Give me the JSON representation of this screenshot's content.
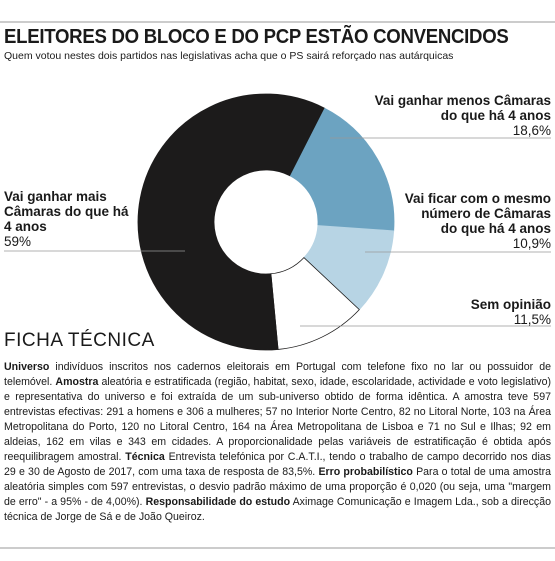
{
  "chart_data": {
    "type": "donut",
    "title": "ELEITORES DO BLOCO E DO PCP ESTÃO CONVENCIDOS",
    "subtitle": "Quem votou nestes dois partidos nas legislativas acha que o PS sairá reforçado nas autárquicas",
    "categories": [
      "Vai ganhar menos Câmaras do que há 4 anos",
      "Vai ficar com o mesmo número de Câmaras do que há 4 anos",
      "Sem opinião",
      "Vai ganhar mais Câmaras do que há 4 anos"
    ],
    "values": [
      18.6,
      10.9,
      11.5,
      59
    ],
    "value_labels": [
      "18,6%",
      "10,9%",
      "11,5%",
      "59%"
    ],
    "colors": [
      "#6ca3c1",
      "#b7d4e4",
      "#ffffff",
      "#1c1b1b"
    ]
  },
  "ficha_tecnica": {
    "heading": "FICHA TÉCNICA",
    "items": [
      {
        "term": "Universo",
        "text": "indivíduos inscritos nos cadernos eleitorais em Portugal com telefone fixo no lar ou possuidor de telemóvel."
      },
      {
        "term": "Amostra",
        "text": "aleatória e estratificada (região, habitat, sexo, idade, escolaridade, actividade e voto legislativo) e representativa do universo e foi extraída de um sub-universo obtido de forma idêntica. A amostra teve 597 entrevistas efectivas: 291 a homens e 306 a mulheres; 57 no Interior Norte Centro, 82 no Litoral Norte, 103 na Área Metropolitana do Porto, 120 no Litoral Centro, 164 na Área Metropolitana de Lisboa e 71 no Sul e Ilhas; 92 em aldeias, 162 em vilas e 343 em cidades. A proporcionalidade pelas variáveis de estratificação é obtida após reequilibragem amostral."
      },
      {
        "term": "Técnica",
        "text": "Entrevista telefónica por C.A.T.I., tendo o trabalho de campo decorrido nos dias 29 e 30 de Agosto de 2017, com uma taxa de resposta de 83,5%."
      },
      {
        "term": "Erro probabilístico",
        "text": "Para o total de uma amostra aleatória simples com 597 entrevistas, o desvio padrão máximo de uma proporção é 0,020 (ou seja, uma \"margem de erro\" - a 95% - de 4,00%)."
      },
      {
        "term": "Responsabilidade do estudo",
        "text": "Aximage Comunicação e Imagem Lda., sob a direcção técnica de Jorge de Sá e de João Queiroz."
      }
    ]
  }
}
